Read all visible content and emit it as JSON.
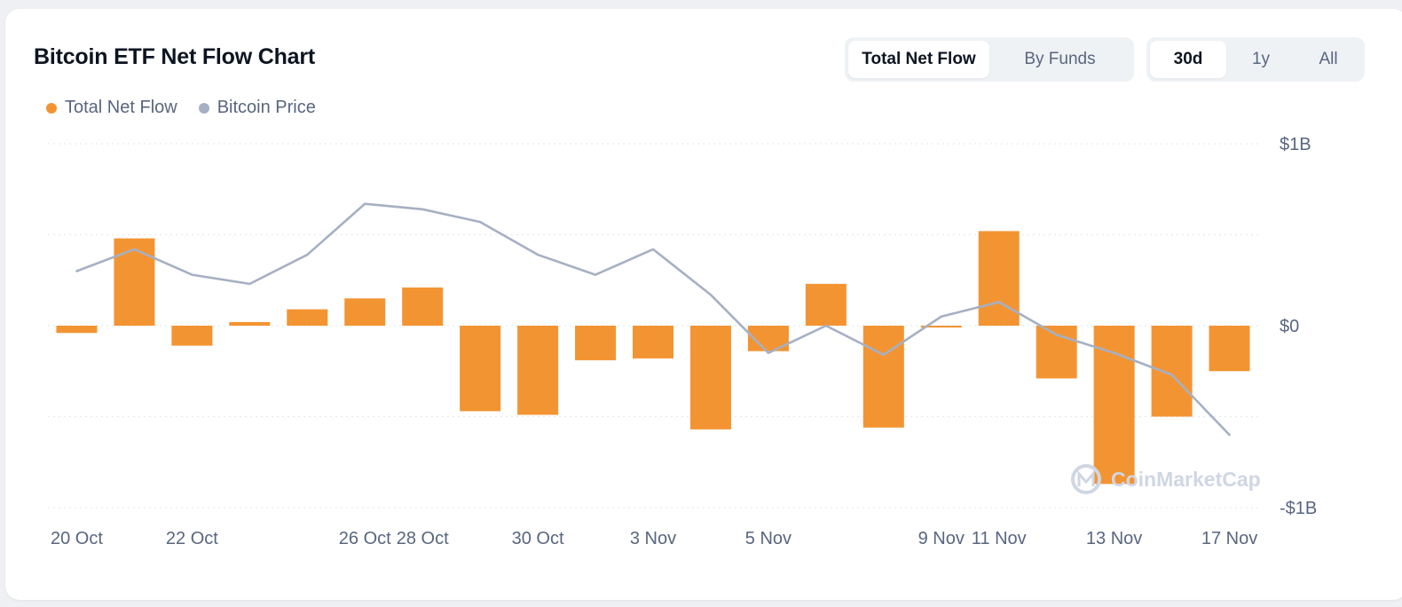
{
  "title": "Bitcoin ETF Net Flow Chart",
  "flow_toggle": {
    "options": [
      "Total Net Flow",
      "By Funds"
    ],
    "selected": "Total Net Flow"
  },
  "range_toggle": {
    "options": [
      "30d",
      "1y",
      "All"
    ],
    "selected": "30d"
  },
  "legend": [
    {
      "label": "Total Net Flow",
      "color": "#f39432"
    },
    {
      "label": "Bitcoin Price",
      "color": "#a6b0c3"
    }
  ],
  "watermark": "CoinMarketCap",
  "chart_data": {
    "type": "bar",
    "title": "Bitcoin ETF Net Flow Chart",
    "ylim": [
      -1,
      1
    ],
    "ylabel_unit": "USD billions",
    "y_ticks": [
      {
        "value": 1,
        "label": "$1B"
      },
      {
        "value": 0,
        "label": "$0"
      },
      {
        "value": -1,
        "label": "-$1B"
      }
    ],
    "x_tick_labels": [
      {
        "index": 0,
        "label": "20 Oct"
      },
      {
        "index": 2,
        "label": "22 Oct"
      },
      {
        "index": 5,
        "label": "26 Oct"
      },
      {
        "index": 6,
        "label": "28 Oct"
      },
      {
        "index": 8,
        "label": "30 Oct"
      },
      {
        "index": 10,
        "label": "3 Nov"
      },
      {
        "index": 12,
        "label": "5 Nov"
      },
      {
        "index": 15,
        "label": "9 Nov"
      },
      {
        "index": 16,
        "label": "11 Nov"
      },
      {
        "index": 18,
        "label": "13 Nov"
      },
      {
        "index": 20,
        "label": "17 Nov"
      }
    ],
    "series": [
      {
        "name": "Total Net Flow",
        "type": "bar",
        "color": "#f39432",
        "values": [
          -0.04,
          0.48,
          -0.11,
          0.02,
          0.09,
          0.15,
          0.21,
          -0.47,
          -0.49,
          -0.19,
          -0.18,
          -0.57,
          -0.14,
          0.23,
          -0.56,
          -0.01,
          0.52,
          -0.29,
          -0.87,
          -0.5,
          -0.25
        ]
      },
      {
        "name": "Bitcoin Price",
        "type": "line",
        "color": "#a6b0c3",
        "note": "relative level on the same vertical scale (no price axis shown)",
        "values": [
          0.3,
          0.42,
          0.28,
          0.23,
          0.39,
          0.67,
          0.64,
          0.57,
          0.39,
          0.28,
          0.42,
          0.17,
          -0.15,
          0.0,
          -0.16,
          0.05,
          0.13,
          -0.05,
          -0.15,
          -0.27,
          -0.6
        ]
      }
    ]
  }
}
